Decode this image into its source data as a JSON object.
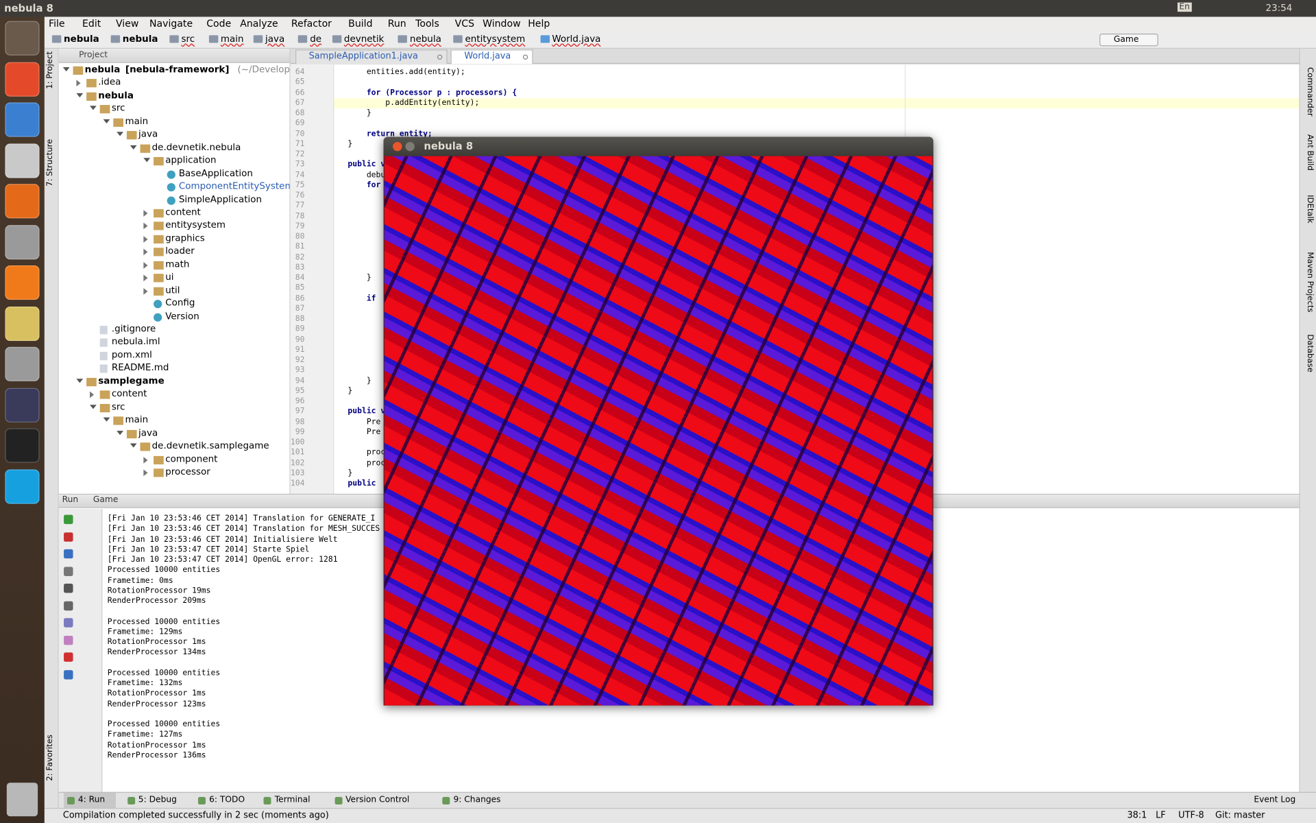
{
  "top_bar": {
    "title": "nebula 8",
    "lang": "En",
    "time": "23:54"
  },
  "menu": [
    "File",
    "Edit",
    "View",
    "Navigate",
    "Code",
    "Analyze",
    "Refactor",
    "Build",
    "Run",
    "Tools",
    "VCS",
    "Window",
    "Help"
  ],
  "breadcrumb": [
    "nebula",
    "nebula",
    "src",
    "main",
    "java",
    "de",
    "devnetik",
    "nebula",
    "entitysystem",
    "World.java"
  ],
  "run_config": "Game",
  "project_panel": {
    "title": "Project",
    "tree": {
      "label": "nebula",
      "suffix": "[nebula-framework]",
      "path": "(~/Development/n",
      "module": true,
      "children": [
        {
          "label": ".idea",
          "children": []
        },
        {
          "label": "nebula",
          "module": true,
          "children": [
            {
              "label": "src",
              "children": [
                {
                  "label": "main",
                  "children": [
                    {
                      "label": "java",
                      "children": [
                        {
                          "label": "de.devnetik.nebula",
                          "children": [
                            {
                              "label": "application",
                              "children": [
                                {
                                  "label": "BaseApplication",
                                  "cls": true
                                },
                                {
                                  "label": "ComponentEntitySystem",
                                  "cls": true
                                },
                                {
                                  "label": "SimpleApplication",
                                  "cls": true
                                }
                              ]
                            },
                            {
                              "label": "content",
                              "children": []
                            },
                            {
                              "label": "entitysystem",
                              "children": []
                            },
                            {
                              "label": "graphics",
                              "children": []
                            },
                            {
                              "label": "loader",
                              "children": []
                            },
                            {
                              "label": "math",
                              "children": []
                            },
                            {
                              "label": "ui",
                              "children": []
                            },
                            {
                              "label": "util",
                              "children": []
                            },
                            {
                              "label": "Config",
                              "cls": true
                            },
                            {
                              "label": "Version",
                              "cls": true
                            }
                          ]
                        }
                      ]
                    }
                  ]
                }
              ]
            },
            {
              "label": ".gitignore"
            },
            {
              "label": "nebula.iml"
            },
            {
              "label": "pom.xml"
            },
            {
              "label": "README.md"
            }
          ]
        },
        {
          "label": "samplegame",
          "module": true,
          "children": [
            {
              "label": "content",
              "children": []
            },
            {
              "label": "src",
              "children": [
                {
                  "label": "main",
                  "children": [
                    {
                      "label": "java",
                      "children": [
                        {
                          "label": "de.devnetik.samplegame",
                          "children": [
                            {
                              "label": "component",
                              "children": []
                            },
                            {
                              "label": "processor",
                              "children": []
                            }
                          ]
                        }
                      ]
                    }
                  ]
                }
              ]
            }
          ]
        }
      ]
    }
  },
  "left_tabs": [
    "1: Project",
    "7: Structure",
    "2: Favorites"
  ],
  "right_tabs": [
    "Commander",
    "Ant Build",
    "IDEtalk",
    "Maven Projects",
    "Database"
  ],
  "editor": {
    "tabs": [
      "SampleApplication1.java",
      "World.java"
    ],
    "line_numbers": [
      64,
      65,
      66,
      67,
      68,
      69,
      70,
      71,
      72,
      73,
      74,
      75,
      76,
      77,
      78,
      79,
      80,
      81,
      82,
      83,
      84,
      85,
      86,
      87,
      88,
      89,
      90,
      91,
      92,
      93,
      94,
      95,
      96,
      97,
      98,
      99,
      100,
      101,
      102,
      103,
      104
    ],
    "code": [
      {
        "line": 64,
        "text": "        entities.add(entity);"
      },
      {
        "line": 66,
        "text": "        for (Processor p : processors) {"
      },
      {
        "line": 67,
        "text": "            p.addEntity(entity);"
      },
      {
        "line": 68,
        "text": "        }"
      },
      {
        "line": 70,
        "text": "        return entity;"
      },
      {
        "line": 71,
        "text": "    }"
      },
      {
        "line": 73,
        "text": "    public v"
      },
      {
        "line": 74,
        "text": "        debu"
      },
      {
        "line": 75,
        "text": "        for"
      },
      {
        "line": 84,
        "text": "        }"
      },
      {
        "line": 86,
        "text": "        if"
      },
      {
        "line": 94,
        "text": "        }"
      },
      {
        "line": 95,
        "text": "    }"
      },
      {
        "line": 97,
        "text": "    public v"
      },
      {
        "line": 98,
        "text": "        Pre"
      },
      {
        "line": 99,
        "text": "        Pre"
      },
      {
        "line": 101,
        "text": "        proc"
      },
      {
        "line": 102,
        "text": "        proc"
      },
      {
        "line": 103,
        "text": "    }"
      },
      {
        "line": 104,
        "text": "    public"
      }
    ]
  },
  "game_window": {
    "title": "nebula 8"
  },
  "run_panel": {
    "title": "Run",
    "tab": "Game",
    "log": [
      "[Fri Jan 10 23:53:46 CET 2014] Translation for GENERATE_I",
      "[Fri Jan 10 23:53:46 CET 2014] Translation for MESH_SUCCES",
      "[Fri Jan 10 23:53:46 CET 2014] Initialisiere Welt",
      "[Fri Jan 10 23:53:47 CET 2014] Starte Spiel",
      "[Fri Jan 10 23:53:47 CET 2014] OpenGL error: 1281"
    ],
    "stats": [
      [
        "Processed 10000 entities",
        "Frametime: 0ms",
        "RotationProcessor 19ms",
        "RenderProcessor 209ms"
      ],
      [
        "Processed 10000 entities",
        "Frametime: 129ms",
        "RotationProcessor 1ms",
        "RenderProcessor 134ms"
      ],
      [
        "Processed 10000 entities",
        "Frametime: 132ms",
        "RotationProcessor 1ms",
        "RenderProcessor 123ms"
      ],
      [
        "Processed 10000 entities",
        "Frametime: 127ms",
        "RotationProcessor 1ms",
        "RenderProcessor 136ms"
      ]
    ]
  },
  "bottom_tabs": [
    "4: Run",
    "5: Debug",
    "6: TODO",
    "Terminal",
    "Version Control",
    "9: Changes"
  ],
  "event_log": "Event Log",
  "status_bar": {
    "message": "Compilation completed successfully in 2 sec (moments ago)",
    "position": "38:1",
    "line_separator": "LF",
    "encoding": "UTF-8",
    "vcs": "Git: master"
  }
}
